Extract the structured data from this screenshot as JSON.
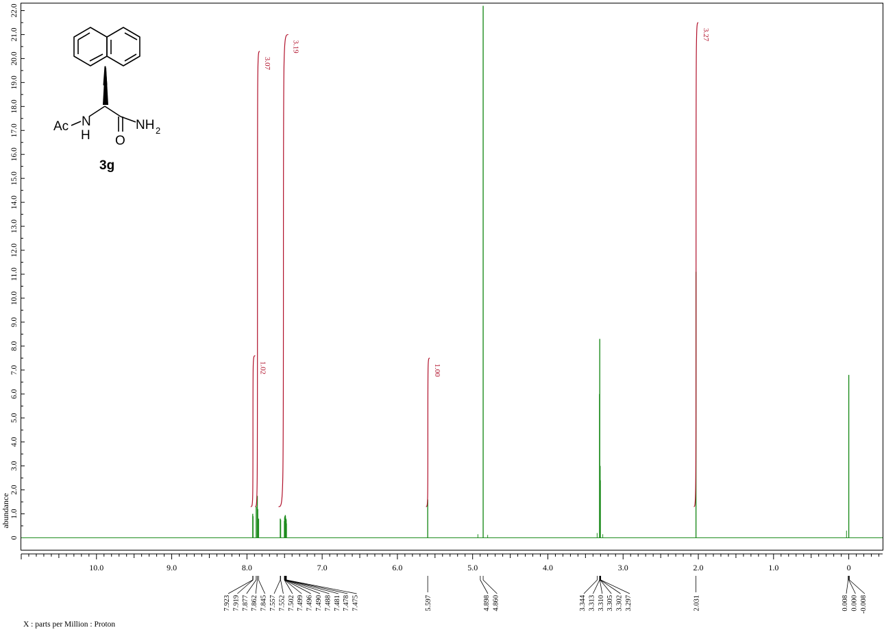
{
  "chart_data": {
    "type": "line",
    "title": "",
    "xlabel": "X : parts per Million : Proton",
    "ylabel": "abundance",
    "x_reversed": true,
    "xlim": [
      11.0,
      -0.45
    ],
    "ylim": [
      -0.5,
      22.3
    ],
    "x_ticks": [
      "10.0",
      "9.0",
      "8.0",
      "7.0",
      "6.0",
      "5.0",
      "4.0",
      "3.0",
      "2.0",
      "1.0",
      "0"
    ],
    "y_ticks": [
      "0",
      "1.0",
      "2.0",
      "3.0",
      "4.0",
      "5.0",
      "6.0",
      "7.0",
      "8.0",
      "9.0",
      "10.0",
      "11.0",
      "12.0",
      "13.0",
      "14.0",
      "15.0",
      "16.0",
      "17.0",
      "18.0",
      "19.0",
      "20.0",
      "21.0",
      "22.0"
    ],
    "spectrum_color": "#1e8c1e",
    "integral_color": "#b0102a",
    "peaks": [
      {
        "ppm": 7.923,
        "height": 1.0
      },
      {
        "ppm": 7.919,
        "height": 0.9
      },
      {
        "ppm": 7.877,
        "height": 1.3
      },
      {
        "ppm": 7.862,
        "height": 1.75
      },
      {
        "ppm": 7.856,
        "height": 1.2
      },
      {
        "ppm": 7.845,
        "height": 0.8
      },
      {
        "ppm": 7.557,
        "height": 0.8
      },
      {
        "ppm": 7.552,
        "height": 0.75
      },
      {
        "ppm": 7.502,
        "height": 0.7
      },
      {
        "ppm": 7.499,
        "height": 0.85
      },
      {
        "ppm": 7.496,
        "height": 0.9
      },
      {
        "ppm": 7.49,
        "height": 0.95
      },
      {
        "ppm": 7.488,
        "height": 0.9
      },
      {
        "ppm": 7.481,
        "height": 0.8
      },
      {
        "ppm": 7.478,
        "height": 0.75
      },
      {
        "ppm": 7.475,
        "height": 0.6
      },
      {
        "ppm": 5.597,
        "height": 1.6
      },
      {
        "ppm": 4.86,
        "height": 22.2
      },
      {
        "ppm": 3.313,
        "height": 6.0
      },
      {
        "ppm": 3.31,
        "height": 8.3
      },
      {
        "ppm": 3.305,
        "height": 3.0
      },
      {
        "ppm": 3.302,
        "height": 2.4
      },
      {
        "ppm": 2.031,
        "height": 11.1
      },
      {
        "ppm": 0.0,
        "height": 6.8
      }
    ],
    "integrals": [
      {
        "start": 7.95,
        "end": 7.89,
        "y_start": 1.3,
        "y_end": 7.6,
        "label": "1.02"
      },
      {
        "start": 7.89,
        "end": 7.83,
        "y_start": 1.3,
        "y_end": 20.3,
        "label": "3.07"
      },
      {
        "start": 7.58,
        "end": 7.45,
        "y_start": 1.3,
        "y_end": 21.0,
        "label": "3.19"
      },
      {
        "start": 5.62,
        "end": 5.57,
        "y_start": 1.3,
        "y_end": 7.5,
        "label": "1.00"
      },
      {
        "start": 2.06,
        "end": 2.0,
        "y_start": 1.3,
        "y_end": 21.5,
        "label": "3.27"
      }
    ],
    "peak_label_groups": [
      {
        "labels": [
          "7.923",
          "7.919",
          "7.877",
          "7.862",
          "7.845",
          "7.557",
          "7.552",
          "7.502",
          "7.499",
          "7.496",
          "7.490",
          "7.488",
          "7.481",
          "7.478",
          "7.475"
        ],
        "ppms": [
          7.923,
          7.919,
          7.877,
          7.862,
          7.845,
          7.557,
          7.552,
          7.502,
          7.499,
          7.496,
          7.49,
          7.488,
          7.481,
          7.478,
          7.475
        ],
        "label_x_start": 330,
        "label_spacing": 13.4
      },
      {
        "labels": [
          "5.597"
        ],
        "ppms": [
          5.597
        ],
        "label_x_start": 634,
        "label_spacing": 13.4
      },
      {
        "labels": [
          "4.898",
          "4.860"
        ],
        "ppms": [
          4.898,
          4.86
        ],
        "label_x_start": 709,
        "label_spacing": 13.4
      },
      {
        "labels": [
          "3.344",
          "3.313",
          "3.310",
          "3.305",
          "3.302",
          "3.297"
        ],
        "ppms": [
          3.344,
          3.313,
          3.31,
          3.305,
          3.302,
          3.297
        ],
        "label_x_start": 849,
        "label_spacing": 13.4
      },
      {
        "labels": [
          "2.031"
        ],
        "ppms": [
          2.031
        ],
        "label_x_start": 1022,
        "label_spacing": 13.4
      },
      {
        "labels": [
          "0.008",
          "0.000",
          "-0.008"
        ],
        "ppms": [
          0.008,
          0.0,
          -0.008
        ],
        "label_x_start": 1232,
        "label_spacing": 13.4
      }
    ]
  },
  "structure": {
    "ac": "Ac",
    "n": "N",
    "h": "H",
    "nh": "NH",
    "sub2": "2",
    "o": "O",
    "compound_label": "3g"
  }
}
